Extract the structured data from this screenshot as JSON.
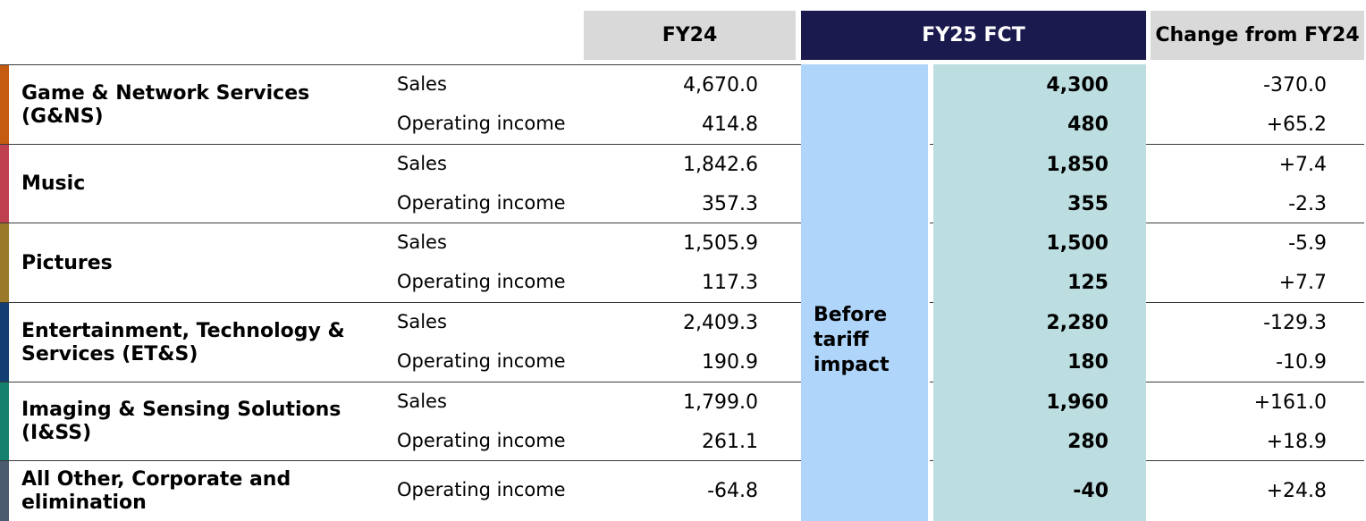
{
  "headers": {
    "fy24": "FY24",
    "fy25": "FY25 FCT",
    "change": "Change from FY24"
  },
  "tariff_note": [
    "Before",
    "tariff",
    "impact"
  ],
  "colors": {
    "fy24_header_bg": "#d9d9d9",
    "fy25_header_bg": "#1a1a4e",
    "before_tariff_band": "#afd5fa",
    "fy25_values_band": "#bcdee1"
  },
  "segments": [
    {
      "name": [
        "Game & Network Services",
        "(G&NS)"
      ],
      "color": "#c55a11",
      "rows": [
        {
          "metric": "Sales",
          "fy24": "4,670.0",
          "fy25": "4,300",
          "change": "-370.0"
        },
        {
          "metric": "Operating income",
          "fy24": "414.8",
          "fy25": "480",
          "change": "+65.2"
        }
      ]
    },
    {
      "name": [
        "Music"
      ],
      "color": "#c0404f",
      "rows": [
        {
          "metric": "Sales",
          "fy24": "1,842.6",
          "fy25": "1,850",
          "change": "+7.4"
        },
        {
          "metric": "Operating income",
          "fy24": "357.3",
          "fy25": "355",
          "change": "-2.3"
        }
      ]
    },
    {
      "name": [
        "Pictures"
      ],
      "color": "#9a7a2a",
      "rows": [
        {
          "metric": "Sales",
          "fy24": "1,505.9",
          "fy25": "1,500",
          "change": "-5.9"
        },
        {
          "metric": "Operating income",
          "fy24": "117.3",
          "fy25": "125",
          "change": "+7.7"
        }
      ]
    },
    {
      "name": [
        "Entertainment, Technology &",
        "Services (ET&S)"
      ],
      "color": "#123e73",
      "rows": [
        {
          "metric": "Sales",
          "fy24": "2,409.3",
          "fy25": "2,280",
          "change": "-129.3"
        },
        {
          "metric": "Operating income",
          "fy24": "190.9",
          "fy25": "180",
          "change": "-10.9"
        }
      ]
    },
    {
      "name": [
        "Imaging & Sensing Solutions",
        "(I&SS)"
      ],
      "color": "#14806e",
      "rows": [
        {
          "metric": "Sales",
          "fy24": "1,799.0",
          "fy25": "1,960",
          "change": "+161.0"
        },
        {
          "metric": "Operating income",
          "fy24": "261.1",
          "fy25": "280",
          "change": "+18.9"
        }
      ]
    },
    {
      "name": [
        "All Other, Corporate and",
        "elimination"
      ],
      "color": "#4a5b70",
      "rows": [
        {
          "metric": "Operating income",
          "fy24": "-64.8",
          "fy25": "-40",
          "change": "+24.8"
        }
      ]
    }
  ]
}
